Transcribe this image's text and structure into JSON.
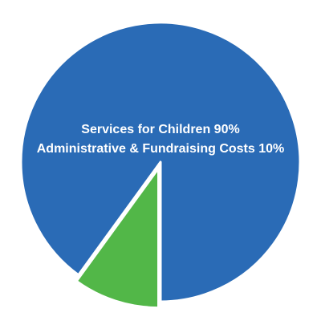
{
  "chart_data": {
    "type": "pie",
    "title": "",
    "slices": [
      {
        "label": "Services for Children",
        "value": 90,
        "display": "Services for Children 90%",
        "color": "#2a6bb6"
      },
      {
        "label": "Administrative & Fundraising Costs",
        "value": 10,
        "display": "Administrative & Fundraising Costs 10%",
        "color": "#52b748"
      }
    ],
    "start_angle_deg": 180,
    "direction": "counterclockwise",
    "exploded_slice": "Administrative & Fundraising Costs",
    "slice_border_color": "#ffffff",
    "legend": "none"
  }
}
